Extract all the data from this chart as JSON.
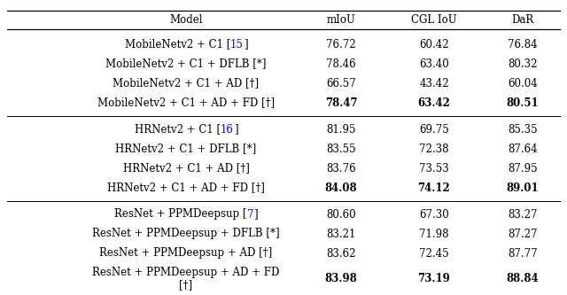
{
  "columns": [
    "Model",
    "mIoU",
    "CGL IoU",
    "DaR"
  ],
  "groups": [
    {
      "rows": [
        {
          "model": "MobileNetv2 + C1 [15]",
          "cite": "15",
          "miou": "76.72",
          "cgl": "60.42",
          "dar": "76.84",
          "bold": false
        },
        {
          "model": "MobileNetv2 + C1 + DFLB [*]",
          "cite": null,
          "miou": "78.46",
          "cgl": "63.40",
          "dar": "80.32",
          "bold": false
        },
        {
          "model": "MobileNetv2 + C1 + AD [†]",
          "cite": null,
          "miou": "66.57",
          "cgl": "43.42",
          "dar": "60.04",
          "bold": false
        },
        {
          "model": "MobileNetv2 + C1 + AD + FD [†]",
          "cite": null,
          "miou": "78.47",
          "cgl": "63.42",
          "dar": "80.51",
          "bold": true
        }
      ]
    },
    {
      "rows": [
        {
          "model": "HRNetv2 + C1 [16]",
          "cite": "16",
          "miou": "81.95",
          "cgl": "69.75",
          "dar": "85.35",
          "bold": false
        },
        {
          "model": "HRNetv2 + C1 + DFLB [*]",
          "cite": null,
          "miou": "83.55",
          "cgl": "72.38",
          "dar": "87.64",
          "bold": false
        },
        {
          "model": "HRNetv2 + C1 + AD [†]",
          "cite": null,
          "miou": "83.76",
          "cgl": "73.53",
          "dar": "87.95",
          "bold": false
        },
        {
          "model": "HRNetv2 + C1 + AD + FD [†]",
          "cite": null,
          "miou": "84.08",
          "cgl": "74.12",
          "dar": "89.01",
          "bold": true
        }
      ]
    },
    {
      "rows": [
        {
          "model": "ResNet + PPMDeepsup [7]",
          "cite": "7",
          "miou": "80.60",
          "cgl": "67.30",
          "dar": "83.27",
          "bold": false
        },
        {
          "model": "ResNet + PPMDeepsup + DFLB [*]",
          "cite": null,
          "miou": "83.21",
          "cgl": "71.98",
          "dar": "87.27",
          "bold": false
        },
        {
          "model": "ResNet + PPMDeepsup + AD [†]",
          "cite": null,
          "miou": "83.62",
          "cgl": "72.45",
          "dar": "87.77",
          "bold": false
        },
        {
          "model": "ResNet + PPMDeepsup + AD + FD\n[†]",
          "cite": null,
          "miou": "83.98",
          "cgl": "73.19",
          "dar": "88.84",
          "bold": true
        }
      ]
    }
  ],
  "font_size": 8.5,
  "cite_color": "#0000ff",
  "text_color": "#000000",
  "line_color": "#000000",
  "bg_color": "#ffffff"
}
